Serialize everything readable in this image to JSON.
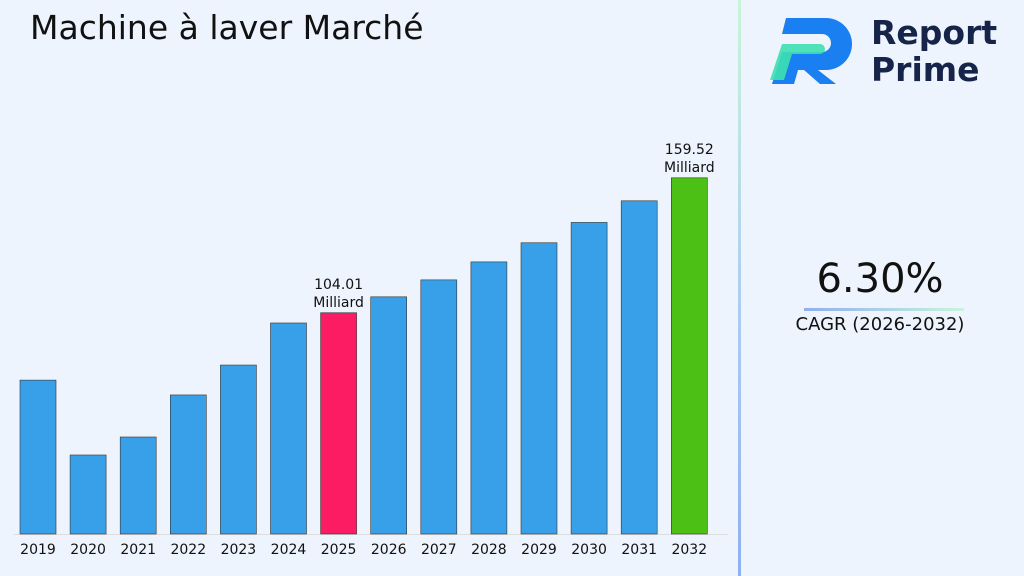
{
  "title": "Machine à laver Marché",
  "logo": {
    "line1": "Report",
    "line2": "Prime"
  },
  "cagr": {
    "value": "6.30%",
    "label": "CAGR (2026-2032)"
  },
  "colors": {
    "bar": "#38a0e8",
    "highlight_2025": "#fc1c64",
    "highlight_2032": "#4cc014"
  },
  "chart_data": {
    "type": "bar",
    "categories": [
      "2019",
      "2020",
      "2021",
      "2022",
      "2023",
      "2024",
      "2025",
      "2026",
      "2027",
      "2028",
      "2029",
      "2030",
      "2031",
      "2032"
    ],
    "values": [
      76.3,
      45.5,
      52.9,
      70.2,
      82.5,
      99.8,
      104.01,
      110.56,
      117.53,
      124.93,
      132.8,
      141.17,
      150.06,
      159.52
    ],
    "data_labels": [
      {
        "category": "2025",
        "line1": "104.01",
        "line2": "Milliard"
      },
      {
        "category": "2032",
        "line1": "159.52",
        "line2": "Milliard"
      }
    ],
    "title": "",
    "xlabel": "",
    "ylabel": "",
    "grid": false
  }
}
